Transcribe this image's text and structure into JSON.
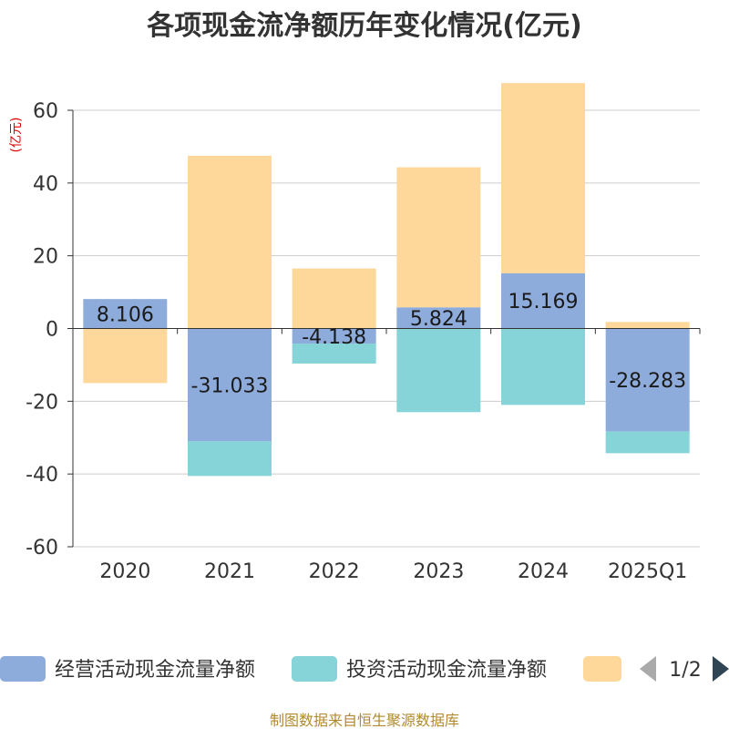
{
  "chart_data": {
    "type": "bar",
    "stacked": true,
    "title": "各项现金流净额历年变化情况(亿元)",
    "ylabel": "(亿元)",
    "ylim": [
      -60,
      60
    ],
    "yticks": [
      60,
      40,
      20,
      0,
      -20,
      -40,
      -60
    ],
    "yticks_labels": [
      "60",
      "40",
      "20",
      "0",
      "-20",
      "-40",
      "-60"
    ],
    "grid": true,
    "categories": [
      "2020",
      "2021",
      "2022",
      "2023",
      "2024",
      "2025Q1"
    ],
    "series": [
      {
        "name": "经营活动现金流量净额",
        "color": "#8eacdb",
        "values": [
          8.106,
          -31.033,
          -4.138,
          5.824,
          15.169,
          -28.283
        ],
        "labels": [
          "8.106",
          "-31.033",
          "-4.138",
          "5.824",
          "15.169",
          "-28.283"
        ]
      },
      {
        "name": "投资活动现金流量净额",
        "color": "#86d4d8",
        "values": [
          0,
          -9.5,
          -5.5,
          -23,
          -21,
          -6
        ]
      },
      {
        "name": "",
        "color": "#fdd89a",
        "values": [
          -15,
          47.5,
          16.5,
          38.5,
          52.3,
          1.8
        ]
      }
    ],
    "legend": {
      "position": "bottom",
      "page": "1/2"
    },
    "source": "制图数据来自恒生聚源数据库"
  },
  "colors": {
    "axis": "#333333",
    "grid": "#cccccc",
    "pager_inactive": "#aaaaaa",
    "pager_active": "#2f4554"
  },
  "icons": {
    "prev": "triangle-left",
    "next": "triangle-right"
  }
}
